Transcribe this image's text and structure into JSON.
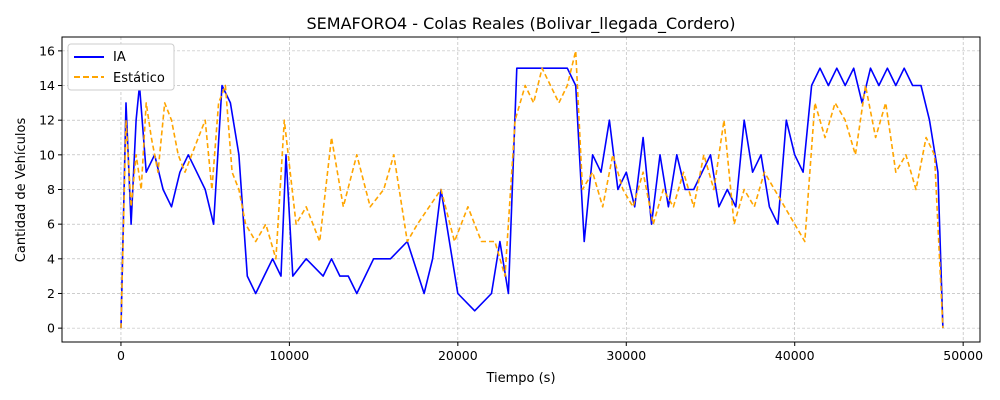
{
  "chart_data": {
    "type": "line",
    "title": "SEMAFORO4 - Colas Reales (Bolivar_llegada_Cordero)",
    "xlabel": "Tiempo (s)",
    "ylabel": "Cantidad de Vehículos",
    "xlim": [
      -3500,
      51000
    ],
    "ylim": [
      -0.8,
      16.8
    ],
    "xticks": [
      0,
      10000,
      20000,
      30000,
      40000,
      50000
    ],
    "xtick_labels": [
      "0",
      "10000",
      "20000",
      "30000",
      "40000",
      "50000"
    ],
    "yticks": [
      0,
      2,
      4,
      6,
      8,
      10,
      12,
      14,
      16
    ],
    "ytick_labels": [
      "0",
      "2",
      "4",
      "6",
      "8",
      "10",
      "12",
      "14",
      "16"
    ],
    "grid": true,
    "legend_position": "top-left",
    "series": [
      {
        "name": "IA",
        "color": "#0000ff",
        "style": "solid",
        "x": [
          0,
          300,
          600,
          900,
          1100,
          1500,
          2000,
          2500,
          3000,
          3500,
          4000,
          4500,
          5000,
          5500,
          6000,
          6500,
          7000,
          7500,
          8000,
          8500,
          9000,
          9500,
          9800,
          10200,
          11000,
          12000,
          12500,
          13000,
          13500,
          14000,
          15000,
          16000,
          17000,
          18000,
          18500,
          19000,
          20000,
          21000,
          22000,
          22500,
          23000,
          23500,
          24000,
          24500,
          25000,
          25500,
          26000,
          26500,
          27000,
          27500,
          28000,
          28500,
          29000,
          29500,
          30000,
          30500,
          31000,
          31500,
          32000,
          32500,
          33000,
          33500,
          34000,
          34500,
          35000,
          35500,
          36000,
          36500,
          37000,
          37500,
          38000,
          38500,
          39000,
          39500,
          40000,
          40500,
          41000,
          41500,
          42000,
          42500,
          43000,
          43500,
          44000,
          44500,
          45000,
          45500,
          46000,
          46500,
          47000,
          47500,
          48000,
          48500,
          48800
        ],
        "values": [
          0,
          13,
          6,
          12,
          14,
          9,
          10,
          8,
          7,
          9,
          10,
          9,
          8,
          6,
          14,
          13,
          10,
          3,
          2,
          3,
          4,
          3,
          10,
          3,
          4,
          3,
          4,
          3,
          3,
          2,
          4,
          4,
          5,
          2,
          4,
          8,
          2,
          1,
          2,
          5,
          2,
          15,
          15,
          15,
          15,
          15,
          15,
          15,
          14,
          5,
          10,
          9,
          12,
          8,
          9,
          7,
          11,
          6,
          10,
          7,
          10,
          8,
          8,
          9,
          10,
          7,
          8,
          7,
          12,
          9,
          10,
          7,
          6,
          12,
          10,
          9,
          14,
          15,
          14,
          15,
          14,
          15,
          13,
          15,
          14,
          15,
          14,
          15,
          14,
          14,
          12,
          9,
          0
        ]
      },
      {
        "name": "Estático",
        "color": "#ffa500",
        "style": "dashed",
        "x": [
          0,
          300,
          600,
          900,
          1200,
          1500,
          1800,
          2200,
          2600,
          3000,
          3400,
          3800,
          4200,
          4600,
          5000,
          5400,
          5800,
          6200,
          6600,
          7000,
          7400,
          8000,
          8600,
          9200,
          9700,
          10400,
          11000,
          11800,
          12500,
          13200,
          14000,
          14800,
          15600,
          16200,
          17000,
          17600,
          18300,
          19000,
          19800,
          20600,
          21400,
          22200,
          22800,
          23400,
          24000,
          24500,
          25000,
          25500,
          26000,
          26500,
          27000,
          27400,
          28000,
          28600,
          29200,
          29800,
          30400,
          31000,
          31600,
          32200,
          32800,
          33400,
          34000,
          34600,
          35200,
          35800,
          36400,
          37000,
          37600,
          38200,
          38800,
          39400,
          40000,
          40600,
          41200,
          41800,
          42400,
          43000,
          43600,
          44200,
          44800,
          45400,
          46000,
          46600,
          47200,
          47800,
          48300,
          48800
        ],
        "values": [
          0,
          12,
          7,
          10,
          8,
          13,
          11,
          9,
          13,
          12,
          10,
          9,
          10,
          11,
          12,
          8,
          13,
          14,
          9,
          8,
          6,
          5,
          6,
          4,
          12,
          6,
          7,
          5,
          11,
          7,
          10,
          7,
          8,
          10,
          5,
          6,
          7,
          8,
          5,
          7,
          5,
          5,
          3,
          12,
          14,
          13,
          15,
          14,
          13,
          14,
          16,
          8,
          9,
          7,
          10,
          8,
          7,
          9,
          6,
          8,
          7,
          9,
          7,
          10,
          8,
          12,
          6,
          8,
          7,
          9,
          8,
          7,
          6,
          5,
          13,
          11,
          13,
          12,
          10,
          14,
          11,
          13,
          9,
          10,
          8,
          11,
          10,
          0
        ]
      }
    ]
  }
}
